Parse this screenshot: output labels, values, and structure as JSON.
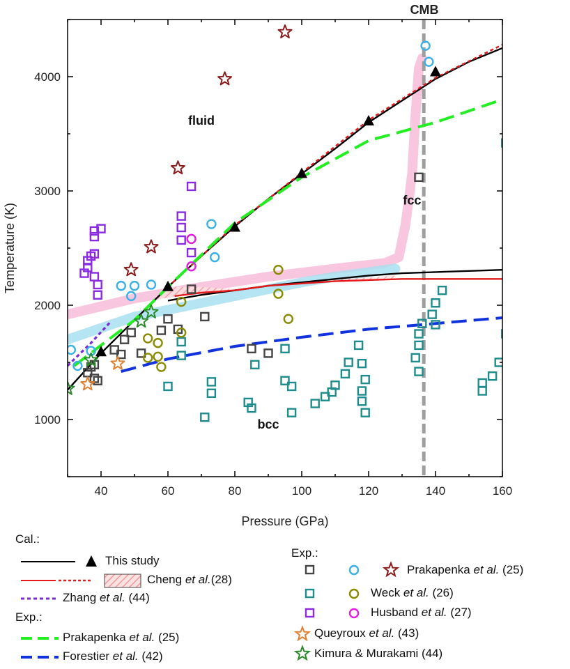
{
  "chart_data": {
    "type": "line",
    "xlabel": "Pressure (GPa)",
    "ylabel": "Temperature (K)",
    "xlim": [
      30,
      160
    ],
    "ylim": [
      500,
      4500
    ],
    "xticks": [
      40,
      60,
      80,
      100,
      120,
      140,
      160
    ],
    "yticks": [
      1000,
      2000,
      3000,
      4000
    ],
    "grid": false,
    "vline": {
      "label": "CMB",
      "x": 136.5,
      "color": "#9e9e9e"
    },
    "regions": [
      {
        "label": "fluid",
        "x": 70,
        "y": 3580
      },
      {
        "label": "fcc",
        "x": 133,
        "y": 2880
      },
      {
        "label": "bcc",
        "x": 90,
        "y": 920
      }
    ],
    "series": [
      {
        "name": "This study (melting)",
        "style": "solid",
        "color": "#000000",
        "points": [
          [
            30,
            1260
          ],
          [
            40,
            1580
          ],
          [
            50,
            1870
          ],
          [
            60,
            2160
          ],
          [
            70,
            2430
          ],
          [
            80,
            2690
          ],
          [
            90,
            2930
          ],
          [
            100,
            3150
          ],
          [
            110,
            3370
          ],
          [
            120,
            3600
          ],
          [
            130,
            3790
          ],
          [
            140,
            3980
          ],
          [
            150,
            4130
          ],
          [
            160,
            4250
          ]
        ]
      },
      {
        "name": "This study (fcc-bcc)",
        "style": "solid",
        "color": "#000000",
        "points": [
          [
            60,
            2040
          ],
          [
            70,
            2090
          ],
          [
            80,
            2130
          ],
          [
            90,
            2170
          ],
          [
            100,
            2200
          ],
          [
            110,
            2230
          ],
          [
            120,
            2260
          ],
          [
            130,
            2280
          ],
          [
            140,
            2290
          ],
          [
            150,
            2300
          ],
          [
            160,
            2310
          ]
        ]
      },
      {
        "name": "This study triangles",
        "style": "triangle",
        "color": "#000000",
        "points": [
          [
            40,
            1590
          ],
          [
            60,
            2160
          ],
          [
            80,
            2680
          ],
          [
            100,
            3150
          ],
          [
            120,
            3610
          ],
          [
            140,
            4040
          ]
        ]
      },
      {
        "name": "Cheng et al. (melting)",
        "style": "dotted",
        "color": "#e31a1c",
        "points": [
          [
            60,
            2160
          ],
          [
            80,
            2700
          ],
          [
            100,
            3160
          ],
          [
            120,
            3620
          ],
          [
            140,
            3990
          ],
          [
            160,
            4280
          ]
        ]
      },
      {
        "name": "Cheng et al. (fcc-bcc)",
        "style": "solid",
        "color": "#e31a1c",
        "points": [
          [
            62,
            2080
          ],
          [
            70,
            2110
          ],
          [
            80,
            2130
          ],
          [
            90,
            2170
          ],
          [
            100,
            2190
          ],
          [
            110,
            2210
          ],
          [
            120,
            2220
          ],
          [
            130,
            2230
          ],
          [
            140,
            2230
          ],
          [
            160,
            2230
          ]
        ]
      },
      {
        "name": "Zhang et al.",
        "style": "dotted",
        "color": "#7a2bd6",
        "points": [
          [
            30,
            1470
          ],
          [
            37,
            1670
          ],
          [
            43,
            1860
          ]
        ]
      },
      {
        "name": "Prakapenka et al. (melting)",
        "style": "dashed",
        "color": "#22ee22",
        "points": [
          [
            32,
            1470
          ],
          [
            40,
            1650
          ],
          [
            50,
            1870
          ],
          [
            60,
            2160
          ],
          [
            70,
            2440
          ],
          [
            80,
            2720
          ],
          [
            100,
            3120
          ],
          [
            120,
            3440
          ],
          [
            140,
            3600
          ],
          [
            160,
            3800
          ]
        ]
      },
      {
        "name": "Forestier et al.",
        "style": "dashed",
        "color": "#1133dd",
        "points": [
          [
            46,
            1420
          ],
          [
            60,
            1530
          ],
          [
            80,
            1640
          ],
          [
            100,
            1720
          ],
          [
            120,
            1790
          ],
          [
            140,
            1840
          ],
          [
            160,
            1890
          ]
        ]
      },
      {
        "name": "pink band",
        "style": "band",
        "color": "#f8bcd9",
        "points": [
          [
            30,
            1920
          ],
          [
            50,
            2060
          ],
          [
            70,
            2160
          ],
          [
            90,
            2250
          ],
          [
            110,
            2320
          ],
          [
            125,
            2370
          ],
          [
            129,
            2420
          ],
          [
            131,
            2700
          ],
          [
            133,
            3150
          ],
          [
            134,
            3660
          ],
          [
            135,
            4070
          ],
          [
            136,
            4160
          ]
        ]
      },
      {
        "name": "blue band",
        "style": "band",
        "color": "#a8dff0",
        "points": [
          [
            30,
            1700
          ],
          [
            40,
            1800
          ],
          [
            50,
            1900
          ],
          [
            60,
            1960
          ],
          [
            70,
            2020
          ],
          [
            80,
            2080
          ],
          [
            90,
            2140
          ],
          [
            100,
            2200
          ],
          [
            110,
            2250
          ],
          [
            120,
            2290
          ],
          [
            128,
            2320
          ]
        ]
      }
    ],
    "scatter": [
      {
        "name": "Prakapenka squares",
        "marker": "square",
        "color": "#444444",
        "points": [
          [
            36,
            1410
          ],
          [
            37,
            1460
          ],
          [
            38,
            1480
          ],
          [
            38,
            1360
          ],
          [
            39,
            1340
          ],
          [
            44,
            1610
          ],
          [
            46,
            1570
          ],
          [
            47,
            1700
          ],
          [
            49,
            1760
          ],
          [
            52,
            1580
          ],
          [
            58,
            1780
          ],
          [
            60,
            1880
          ],
          [
            63,
            1790
          ],
          [
            67,
            2140
          ],
          [
            71,
            1900
          ],
          [
            85,
            1620
          ],
          [
            90,
            1580
          ],
          [
            135,
            3120
          ]
        ]
      },
      {
        "name": "Prakapenka circles",
        "marker": "circle",
        "color": "#3ab0e8",
        "points": [
          [
            31,
            1610
          ],
          [
            33,
            1470
          ],
          [
            37,
            1600
          ],
          [
            46,
            2170
          ],
          [
            49,
            2080
          ],
          [
            50,
            2170
          ],
          [
            55,
            2180
          ],
          [
            73,
            2710
          ],
          [
            74,
            2420
          ],
          [
            137,
            4270
          ],
          [
            138,
            4130
          ]
        ]
      },
      {
        "name": "Prakapenka stars",
        "marker": "star",
        "color": "#8b1a1a",
        "points": [
          [
            95,
            4390
          ],
          [
            77,
            3980
          ],
          [
            63,
            3200
          ],
          [
            55,
            2510
          ],
          [
            49,
            2310
          ]
        ]
      },
      {
        "name": "Weck squares",
        "marker": "square",
        "color": "#1e8c8c",
        "points": [
          [
            64,
            1680
          ],
          [
            64,
            1560
          ],
          [
            60,
            1290
          ],
          [
            71,
            1020
          ],
          [
            73,
            1330
          ],
          [
            73,
            1230
          ],
          [
            84,
            1150
          ],
          [
            85,
            1100
          ],
          [
            86,
            1480
          ],
          [
            95,
            1620
          ],
          [
            95,
            1340
          ],
          [
            97,
            1290
          ],
          [
            97,
            1060
          ],
          [
            104,
            1140
          ],
          [
            107,
            1200
          ],
          [
            109,
            1240
          ],
          [
            110,
            1300
          ],
          [
            113,
            1400
          ],
          [
            114,
            1500
          ],
          [
            117,
            1650
          ],
          [
            118,
            1490
          ],
          [
            119,
            1350
          ],
          [
            118,
            1250
          ],
          [
            118,
            1160
          ],
          [
            119,
            1060
          ],
          [
            134,
            1540
          ],
          [
            135,
            1420
          ],
          [
            135,
            1650
          ],
          [
            135,
            1750
          ],
          [
            136,
            1840
          ],
          [
            139,
            1920
          ],
          [
            140,
            2020
          ],
          [
            140,
            1830
          ],
          [
            142,
            2130
          ],
          [
            154,
            1250
          ],
          [
            154,
            1320
          ],
          [
            157,
            1380
          ],
          [
            159,
            1500
          ],
          [
            161,
            1750
          ],
          [
            161,
            3420
          ]
        ]
      },
      {
        "name": "Weck circles",
        "marker": "circle",
        "color": "#8a8a00",
        "points": [
          [
            54,
            1710
          ],
          [
            54,
            1540
          ],
          [
            57,
            1550
          ],
          [
            57,
            1670
          ],
          [
            58,
            1460
          ],
          [
            64,
            2030
          ],
          [
            64,
            1760
          ],
          [
            93,
            2310
          ],
          [
            93,
            2100
          ],
          [
            96,
            1880
          ]
        ]
      },
      {
        "name": "Husband squares",
        "marker": "square",
        "color": "#8a2be2",
        "points": [
          [
            35,
            2280
          ],
          [
            36,
            2330
          ],
          [
            36,
            2390
          ],
          [
            37,
            2430
          ],
          [
            38,
            2450
          ],
          [
            38,
            2250
          ],
          [
            39,
            2180
          ],
          [
            39,
            2090
          ],
          [
            38,
            2600
          ],
          [
            38,
            2650
          ],
          [
            40,
            2670
          ],
          [
            64,
            2780
          ],
          [
            64,
            2680
          ],
          [
            64,
            2570
          ],
          [
            67,
            2460
          ],
          [
            67,
            3040
          ]
        ]
      },
      {
        "name": "Husband circles",
        "marker": "circle",
        "color": "#e020e0",
        "points": [
          [
            67,
            2580
          ],
          [
            67,
            2340
          ]
        ]
      },
      {
        "name": "Queyroux stars",
        "marker": "star",
        "color": "#e08030",
        "points": [
          [
            36,
            1310
          ],
          [
            45,
            1490
          ]
        ]
      },
      {
        "name": "Kimura stars",
        "marker": "star",
        "color": "#2a8a2a",
        "points": [
          [
            30,
            1270
          ],
          [
            37,
            1520
          ],
          [
            52,
            1860
          ],
          [
            55,
            1940
          ]
        ]
      }
    ],
    "hatch_region": {
      "color": "#f0a0a0",
      "points": [
        [
          57,
          2080
        ],
        [
          62,
          2160
        ],
        [
          70,
          2160
        ],
        [
          80,
          2140
        ],
        [
          90,
          2180
        ],
        [
          100,
          2200
        ],
        [
          110,
          2230
        ],
        [
          120,
          2240
        ],
        [
          128,
          2260
        ],
        [
          127,
          2230
        ],
        [
          120,
          2220
        ],
        [
          100,
          2190
        ],
        [
          90,
          2170
        ],
        [
          80,
          2130
        ],
        [
          70,
          2100
        ],
        [
          62,
          2080
        ],
        [
          57,
          2050
        ]
      ]
    }
  },
  "legend": {
    "cal_label": "Cal.:",
    "exp_label_left": "Exp.:",
    "exp_label_right": "Exp.:",
    "this_study": "This study",
    "cheng_a": "Cheng ",
    "cheng_b": "et al.",
    "cheng_c": "(28)",
    "zhang_a": "Zhang ",
    "zhang_b": "et al.",
    "zhang_c": " (44)",
    "prak_line_a": "Prakapenka ",
    "prak_line_b": "et al.",
    "prak_line_c": " (25)",
    "forest_a": "Forestier ",
    "forest_b": "et al.",
    "forest_c": " (42)",
    "prak_r_a": "Prakapenka ",
    "prak_r_b": "et al.",
    "prak_r_c": " (25)",
    "weck_a": "Weck ",
    "weck_b": "et al.",
    "weck_c": " (26)",
    "husband_a": "Husband ",
    "husband_b": "et al.",
    "husband_c": " (27)",
    "queyroux_a": "Queyroux ",
    "queyroux_b": "et al.",
    "queyroux_c": " (43)",
    "kimura_a": "Kimura & Murakami ",
    "kimura_c": "(44)"
  }
}
